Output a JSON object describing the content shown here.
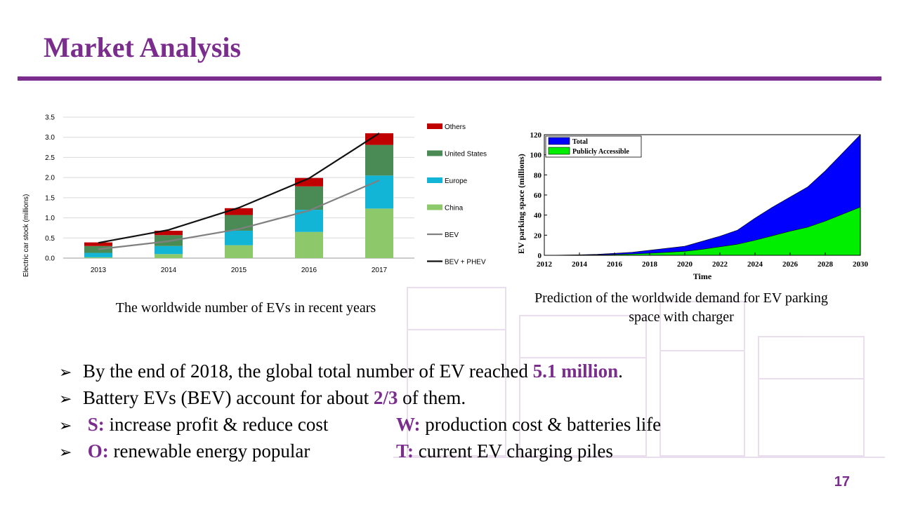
{
  "slide": {
    "title": "Market Analysis",
    "page_number": "17",
    "accent_color": "#7b2d8e"
  },
  "captions": {
    "left": "The worldwide number of EVs in recent years",
    "right": "Prediction of the worldwide demand for EV parking space with charger"
  },
  "bullets": [
    {
      "pre": "By the end of 2018, the global total number of EV reached ",
      "hl": "5.1 million",
      "post": "."
    },
    {
      "pre": "Battery EVs (BEV) account for about ",
      "hl": "2/3",
      "post": " of them."
    }
  ],
  "swot": {
    "s_label": "S:",
    "s_text": " increase profit & reduce cost",
    "w_label": "W:",
    "w_text": " production cost & batteries life",
    "o_label": "O:",
    "o_text": " renewable energy popular",
    "t_label": "T:",
    "t_text": " current EV charging piles"
  },
  "chart_data": [
    {
      "type": "bar",
      "stacked": true,
      "ylabel": "Electric car stock (millions)",
      "ylim": [
        0,
        3.5
      ],
      "yticks": [
        "0.0",
        "0.5",
        "1.0",
        "1.5",
        "2.0",
        "2.5",
        "3.0",
        "3.5"
      ],
      "categories": [
        "2013",
        "2014",
        "2015",
        "2016",
        "2017"
      ],
      "grid": true,
      "legend": "right",
      "series": [
        {
          "name": "China",
          "color": "#8dc86a",
          "values": [
            0.02,
            0.1,
            0.32,
            0.65,
            1.23
          ]
        },
        {
          "name": "Europe",
          "color": "#12b5d6",
          "values": [
            0.11,
            0.2,
            0.36,
            0.55,
            0.82
          ]
        },
        {
          "name": "United States",
          "color": "#4a8a55",
          "values": [
            0.17,
            0.27,
            0.39,
            0.58,
            0.76
          ]
        },
        {
          "name": "Others",
          "color": "#c00000",
          "values": [
            0.09,
            0.11,
            0.17,
            0.21,
            0.29
          ]
        }
      ],
      "lines": [
        {
          "name": "BEV",
          "color": "#808080",
          "values": [
            0.22,
            0.42,
            0.72,
            1.18,
            1.93
          ]
        },
        {
          "name": "BEV + PHEV",
          "color": "#111111",
          "values": [
            0.38,
            0.7,
            1.25,
            1.98,
            3.1
          ]
        }
      ]
    },
    {
      "type": "area",
      "xlabel": "Time",
      "ylabel": "EV parking space (millions)",
      "xlim": [
        2012,
        2030
      ],
      "ylim": [
        0,
        120
      ],
      "xticks": [
        "2012",
        "2014",
        "2016",
        "2018",
        "2020",
        "2022",
        "2024",
        "2026",
        "2028",
        "2030"
      ],
      "yticks": [
        "0",
        "20",
        "40",
        "60",
        "80",
        "100",
        "120"
      ],
      "legend": "top-left",
      "x": [
        2012,
        2013,
        2014,
        2015,
        2016,
        2017,
        2018,
        2019,
        2020,
        2021,
        2022,
        2023,
        2024,
        2025,
        2026,
        2027,
        2028,
        2029,
        2030
      ],
      "series": [
        {
          "name": "Total",
          "color": "#0000ff",
          "values": [
            0,
            0.2,
            0.5,
            1,
            2,
            3,
            5,
            7,
            9,
            14,
            19,
            25,
            37,
            48,
            58,
            68,
            84,
            102,
            120
          ]
        },
        {
          "name": "Publicly Accessible",
          "color": "#00ee00",
          "values": [
            0,
            0.1,
            0.2,
            0.4,
            0.8,
            1.3,
            2,
            3,
            4,
            6,
            8.5,
            11,
            15,
            19.5,
            24,
            28,
            34,
            41,
            48
          ]
        }
      ]
    }
  ]
}
